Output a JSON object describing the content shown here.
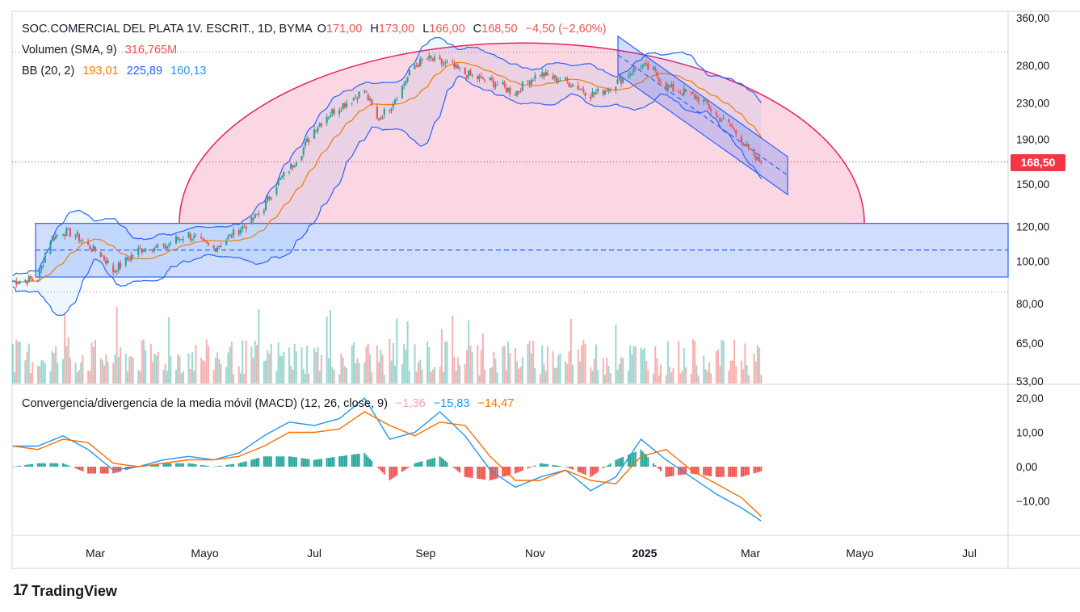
{
  "header": {
    "symbol": "SOC.COMERCIAL DEL PLATA 1V. ESCRIT., 1D, BYMA",
    "open_label": "O",
    "open": "171,00",
    "high_label": "H",
    "high": "173,00",
    "low_label": "L",
    "low": "166,00",
    "close_label": "C",
    "close": "168,50",
    "change": "−4,50 (−2,60%)"
  },
  "volume_legend": {
    "label": "Volumen (SMA, 9)",
    "value": "316,765M"
  },
  "bb_legend": {
    "label": "BB (20, 2)",
    "basis": "193,01",
    "upper": "225,89",
    "lower": "160,13"
  },
  "macd_legend": {
    "label": "Convergencia/divergencia de la media móvil (MACD) (12, 26, close, 9)",
    "hist": "−1,36",
    "macd": "−15,83",
    "signal": "−14,47"
  },
  "price_badge": "168,50",
  "branding": {
    "logo_text": "TradingView"
  },
  "colors": {
    "up": "#26a69a",
    "down": "#ef5350",
    "bb_upper": "#2962ff",
    "bb_basis": "#f57c00",
    "arc": "#e91e63",
    "macd": "#2196f3",
    "signal": "#ff6d00"
  },
  "chart_data": [
    {
      "type": "candlestick",
      "title": "SOC.COMERCIAL DEL PLATA 1V. ESCRIT., 1D, BYMA",
      "y_axis_scale": "log",
      "y_ticks": [
        "360,00",
        "280,00",
        "230,00",
        "190,00",
        "150,00",
        "120,00",
        "100,00",
        "80,00",
        "65,00",
        "53,00"
      ],
      "x_ticks": [
        "Mar",
        "Mayo",
        "Jul",
        "Sep",
        "Nov",
        "2025",
        "Mar",
        "Mayo",
        "Jul"
      ],
      "last_price": 168.5,
      "close_path": [
        [
          "2024-01-15",
          90
        ],
        [
          "2024-01-29",
          91
        ],
        [
          "2024-02-05",
          112
        ],
        [
          "2024-02-12",
          117
        ],
        [
          "2024-02-19",
          115
        ],
        [
          "2024-02-26",
          108
        ],
        [
          "2024-03-04",
          104
        ],
        [
          "2024-03-11",
          95
        ],
        [
          "2024-03-18",
          100
        ],
        [
          "2024-03-25",
          106
        ],
        [
          "2024-04-01",
          108
        ],
        [
          "2024-04-08",
          107
        ],
        [
          "2024-04-15",
          112
        ],
        [
          "2024-04-22",
          115
        ],
        [
          "2024-04-29",
          110
        ],
        [
          "2024-05-06",
          107
        ],
        [
          "2024-05-13",
          112
        ],
        [
          "2024-05-20",
          118
        ],
        [
          "2024-05-27",
          123
        ],
        [
          "2024-06-03",
          133
        ],
        [
          "2024-06-10",
          150
        ],
        [
          "2024-06-17",
          162
        ],
        [
          "2024-06-24",
          178
        ],
        [
          "2024-07-01",
          200
        ],
        [
          "2024-07-08",
          215
        ],
        [
          "2024-07-15",
          225
        ],
        [
          "2024-07-22",
          235
        ],
        [
          "2024-07-29",
          245
        ],
        [
          "2024-08-05",
          210
        ],
        [
          "2024-08-12",
          225
        ],
        [
          "2024-08-19",
          250
        ],
        [
          "2024-08-26",
          280
        ],
        [
          "2024-09-02",
          290
        ],
        [
          "2024-09-09",
          284
        ],
        [
          "2024-09-16",
          278
        ],
        [
          "2024-09-23",
          268
        ],
        [
          "2024-09-30",
          262
        ],
        [
          "2024-10-07",
          258
        ],
        [
          "2024-10-14",
          250
        ],
        [
          "2024-10-21",
          242
        ],
        [
          "2024-10-28",
          258
        ],
        [
          "2024-11-04",
          268
        ],
        [
          "2024-11-11",
          262
        ],
        [
          "2024-11-18",
          258
        ],
        [
          "2024-11-25",
          250
        ],
        [
          "2024-12-02",
          240
        ],
        [
          "2024-12-09",
          245
        ],
        [
          "2024-12-16",
          255
        ],
        [
          "2024-12-23",
          268
        ],
        [
          "2024-12-30",
          280
        ],
        [
          "2025-01-06",
          272
        ],
        [
          "2025-01-13",
          250
        ],
        [
          "2025-01-20",
          245
        ],
        [
          "2025-01-27",
          240
        ],
        [
          "2025-02-03",
          232
        ],
        [
          "2025-02-10",
          215
        ],
        [
          "2025-02-17",
          205
        ],
        [
          "2025-02-24",
          190
        ],
        [
          "2025-03-03",
          171
        ],
        [
          "2025-03-07",
          168.5
        ]
      ],
      "series": [
        {
          "name": "BB (20, 2)",
          "values_last": {
            "basis": 193.01,
            "upper": 225.89,
            "lower": 160.13
          }
        }
      ],
      "annotations": {
        "range_box": {
          "top": 122,
          "bottom": 92,
          "mid": 106,
          "from": "2024-01-29",
          "to": "2025-08-01"
        },
        "arc": {
          "from": "2024-05-01",
          "peak": "2024-10-01",
          "to": "2025-05-01",
          "peak_price": 315,
          "base_price": 122
        },
        "down_channel": {
          "from": "2024-12-20",
          "to": "2025-03-20"
        },
        "dotted_levels": [
          300,
          85,
          168.5
        ]
      }
    },
    {
      "type": "bar",
      "title": "Volumen (SMA, 9)",
      "last_value": "316,765M"
    },
    {
      "type": "line",
      "title": "Convergencia/divergencia de la media móvil (MACD) (12, 26, close, 9)",
      "y_ticks": [
        "20,00",
        "10,00",
        "0,00",
        "−10,00"
      ],
      "ylim": [
        -20,
        22
      ],
      "macd_path": [
        [
          "2024-01-15",
          6
        ],
        [
          "2024-01-29",
          6
        ],
        [
          "2024-02-12",
          9
        ],
        [
          "2024-02-26",
          5
        ],
        [
          "2024-03-11",
          -1
        ],
        [
          "2024-03-25",
          0
        ],
        [
          "2024-04-08",
          2
        ],
        [
          "2024-04-22",
          3
        ],
        [
          "2024-05-06",
          2
        ],
        [
          "2024-05-20",
          4
        ],
        [
          "2024-06-03",
          9
        ],
        [
          "2024-06-17",
          13
        ],
        [
          "2024-07-01",
          12
        ],
        [
          "2024-07-15",
          14
        ],
        [
          "2024-07-29",
          20
        ],
        [
          "2024-08-12",
          8
        ],
        [
          "2024-08-26",
          10
        ],
        [
          "2024-09-09",
          16
        ],
        [
          "2024-09-23",
          9
        ],
        [
          "2024-10-07",
          -1
        ],
        [
          "2024-10-21",
          -6
        ],
        [
          "2024-11-04",
          -3
        ],
        [
          "2024-11-18",
          -1
        ],
        [
          "2024-12-02",
          -7
        ],
        [
          "2024-12-16",
          -3
        ],
        [
          "2024-12-30",
          8
        ],
        [
          "2025-01-13",
          2
        ],
        [
          "2025-01-27",
          -3
        ],
        [
          "2025-02-10",
          -8
        ],
        [
          "2025-02-24",
          -12
        ],
        [
          "2025-03-07",
          -15.83
        ]
      ],
      "signal_path": [
        [
          "2024-01-15",
          6
        ],
        [
          "2024-01-29",
          5
        ],
        [
          "2024-02-12",
          8
        ],
        [
          "2024-02-26",
          7
        ],
        [
          "2024-03-11",
          1
        ],
        [
          "2024-03-25",
          0
        ],
        [
          "2024-04-08",
          1
        ],
        [
          "2024-04-22",
          2
        ],
        [
          "2024-05-06",
          2
        ],
        [
          "2024-05-20",
          3
        ],
        [
          "2024-06-03",
          6
        ],
        [
          "2024-06-17",
          10
        ],
        [
          "2024-07-01",
          10
        ],
        [
          "2024-07-15",
          11
        ],
        [
          "2024-07-29",
          16
        ],
        [
          "2024-08-12",
          12
        ],
        [
          "2024-08-26",
          9
        ],
        [
          "2024-09-09",
          13
        ],
        [
          "2024-09-23",
          12
        ],
        [
          "2024-10-07",
          3
        ],
        [
          "2024-10-21",
          -4
        ],
        [
          "2024-11-04",
          -4
        ],
        [
          "2024-11-18",
          -1
        ],
        [
          "2024-12-02",
          -4
        ],
        [
          "2024-12-16",
          -5
        ],
        [
          "2024-12-30",
          3
        ],
        [
          "2025-01-13",
          5
        ],
        [
          "2025-01-27",
          -1
        ],
        [
          "2025-02-10",
          -5
        ],
        [
          "2025-02-24",
          -9
        ],
        [
          "2025-03-07",
          -14.47
        ]
      ],
      "last_values": {
        "hist": -1.36,
        "macd": -15.83,
        "signal": -14.47
      }
    }
  ]
}
